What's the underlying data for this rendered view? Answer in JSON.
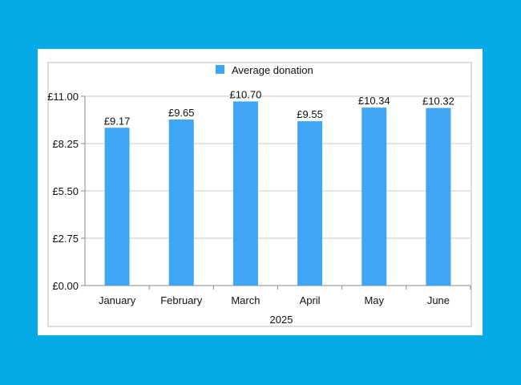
{
  "colors": {
    "background": "#04a9e6",
    "bar": "#3ea6f5",
    "grid": "#c8c8c8",
    "axis": "#8a8a8a"
  },
  "chart_data": {
    "type": "bar",
    "title": "",
    "xlabel": "2025",
    "ylabel": "",
    "categories": [
      "January",
      "February",
      "March",
      "April",
      "May",
      "June"
    ],
    "series": [
      {
        "name": "Average donation",
        "values": [
          9.17,
          9.65,
          10.7,
          9.55,
          10.34,
          10.32
        ],
        "labels": [
          "£9.17",
          "£9.65",
          "£10.70",
          "£9.55",
          "£10.34",
          "£10.32"
        ]
      }
    ],
    "ylim": [
      0,
      11
    ],
    "yticks": [
      0,
      2.75,
      5.5,
      8.25,
      11
    ],
    "ytick_labels": [
      "£0.00",
      "£2.75",
      "£5.50",
      "£8.25",
      "£11.00"
    ],
    "grid": true,
    "legend": "top-center"
  }
}
